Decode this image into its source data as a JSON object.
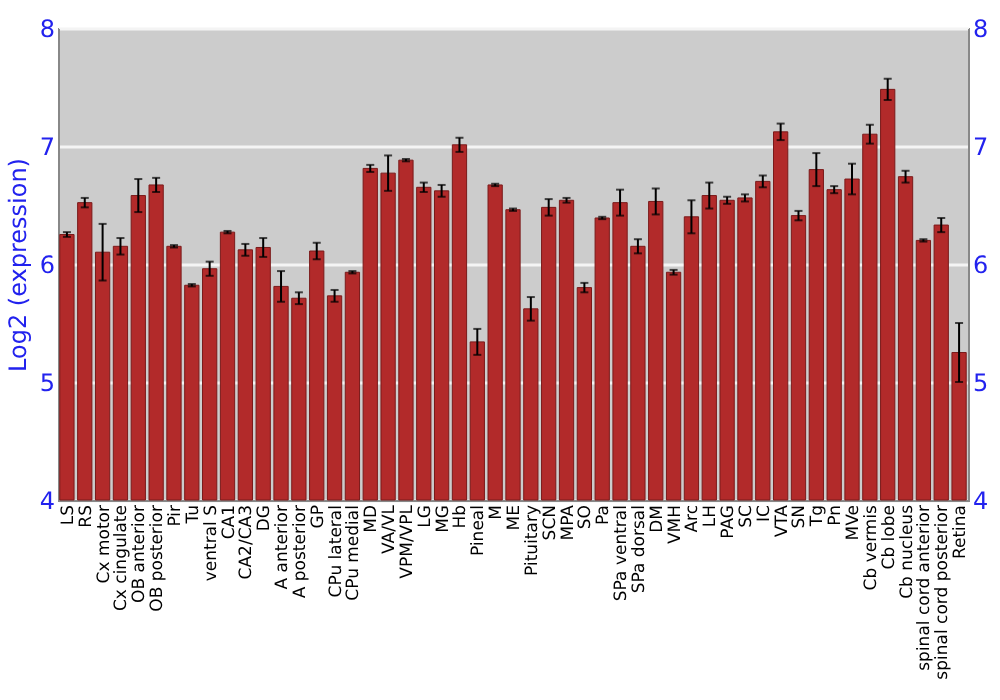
{
  "chart_data": {
    "type": "bar",
    "ylabel": "Log2 (expression)",
    "categories": [
      "LS",
      "RS",
      "Cx motor",
      "Cx cingulate",
      "OB anterior",
      "OB posterior",
      "Pir",
      "Tu",
      "ventral S",
      "CA1",
      "CA2/CA3",
      "DG",
      "A anterior",
      "A posterior",
      "GP",
      "CPu lateral",
      "CPu medial",
      "MD",
      "VA/VL",
      "VPM/VPL",
      "LG",
      "MG",
      "Hb",
      "Pineal",
      "M",
      "ME",
      "Pituitary",
      "SCN",
      "MPA",
      "SO",
      "Pa",
      "SPa ventral",
      "SPa dorsal",
      "DM",
      "VMH",
      "Arc",
      "LH",
      "PAG",
      "SC",
      "IC",
      "VTA",
      "SN",
      "Tg",
      "Pn",
      "MVe",
      "Cb vermis",
      "Cb lobe",
      "Cb nucleus",
      "spinal cord anterior",
      "spinal cord posterior",
      "Retina"
    ],
    "values": [
      6.25,
      6.52,
      6.1,
      6.15,
      6.58,
      6.67,
      6.15,
      5.82,
      5.96,
      6.27,
      6.12,
      6.14,
      5.81,
      5.71,
      6.11,
      5.73,
      5.93,
      6.81,
      6.77,
      6.88,
      6.65,
      6.62,
      7.01,
      5.34,
      6.67,
      6.46,
      5.62,
      6.48,
      6.54,
      5.8,
      6.39,
      6.52,
      6.15,
      6.53,
      5.93,
      6.4,
      6.58,
      6.54,
      6.56,
      6.7,
      7.12,
      6.41,
      6.8,
      6.63,
      6.72,
      7.1,
      7.48,
      6.74,
      6.2,
      6.33,
      5.25
    ],
    "errors": [
      0.02,
      0.04,
      0.24,
      0.07,
      0.14,
      0.06,
      0.01,
      0.01,
      0.06,
      0.01,
      0.05,
      0.08,
      0.13,
      0.05,
      0.07,
      0.05,
      0.01,
      0.03,
      0.15,
      0.01,
      0.04,
      0.05,
      0.06,
      0.11,
      0.01,
      0.01,
      0.1,
      0.07,
      0.02,
      0.04,
      0.01,
      0.11,
      0.06,
      0.11,
      0.02,
      0.14,
      0.11,
      0.03,
      0.03,
      0.05,
      0.07,
      0.04,
      0.14,
      0.03,
      0.13,
      0.08,
      0.09,
      0.05,
      0.01,
      0.06,
      0.25
    ],
    "color": "#b22a2a",
    "ylim": [
      4,
      8
    ],
    "yticks": [
      4,
      5,
      6,
      7,
      8
    ],
    "y2lim": [
      4,
      8
    ],
    "y2ticks": [
      4,
      5,
      6,
      7,
      8
    ],
    "grid": "y"
  }
}
